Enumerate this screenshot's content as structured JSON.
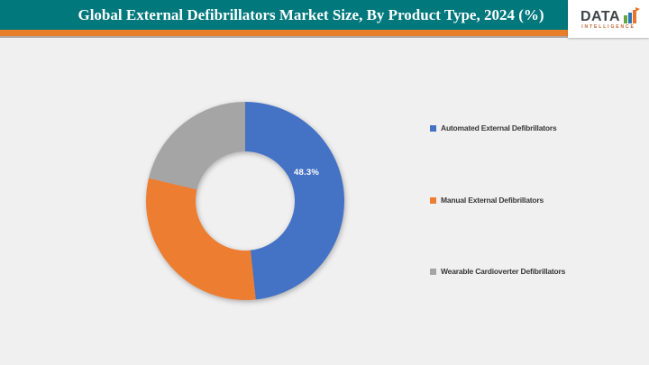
{
  "header": {
    "title": "Global External Defibrillators Market Size, By Product Type, 2024 (%)",
    "logo": {
      "brand": "DATA",
      "sub": "INTELLIGENCE"
    }
  },
  "theme": {
    "header_bg": "#00787C",
    "accent_strip": "#E87D2A",
    "page_bg": "#F0F0F1",
    "title_color": "#FFFFFF"
  },
  "chart_data": {
    "type": "pie",
    "subtype": "donut",
    "title": "Global External Defibrillators Market Size, By Product Type, 2024 (%)",
    "categories": [
      "Automated External Defibrillators",
      "Manual External Defibrillators",
      "Wearable Cardioverter Defibrillators"
    ],
    "values": [
      48.3,
      30.4,
      21.3
    ],
    "colors": [
      "#4472C4",
      "#ED7D31",
      "#A5A5A5"
    ],
    "data_labels": [
      "48.3%",
      "",
      ""
    ],
    "legend_position": "right",
    "start_angle_deg": 0,
    "direction": "clockwise",
    "inner_radius_ratio": 0.5
  }
}
